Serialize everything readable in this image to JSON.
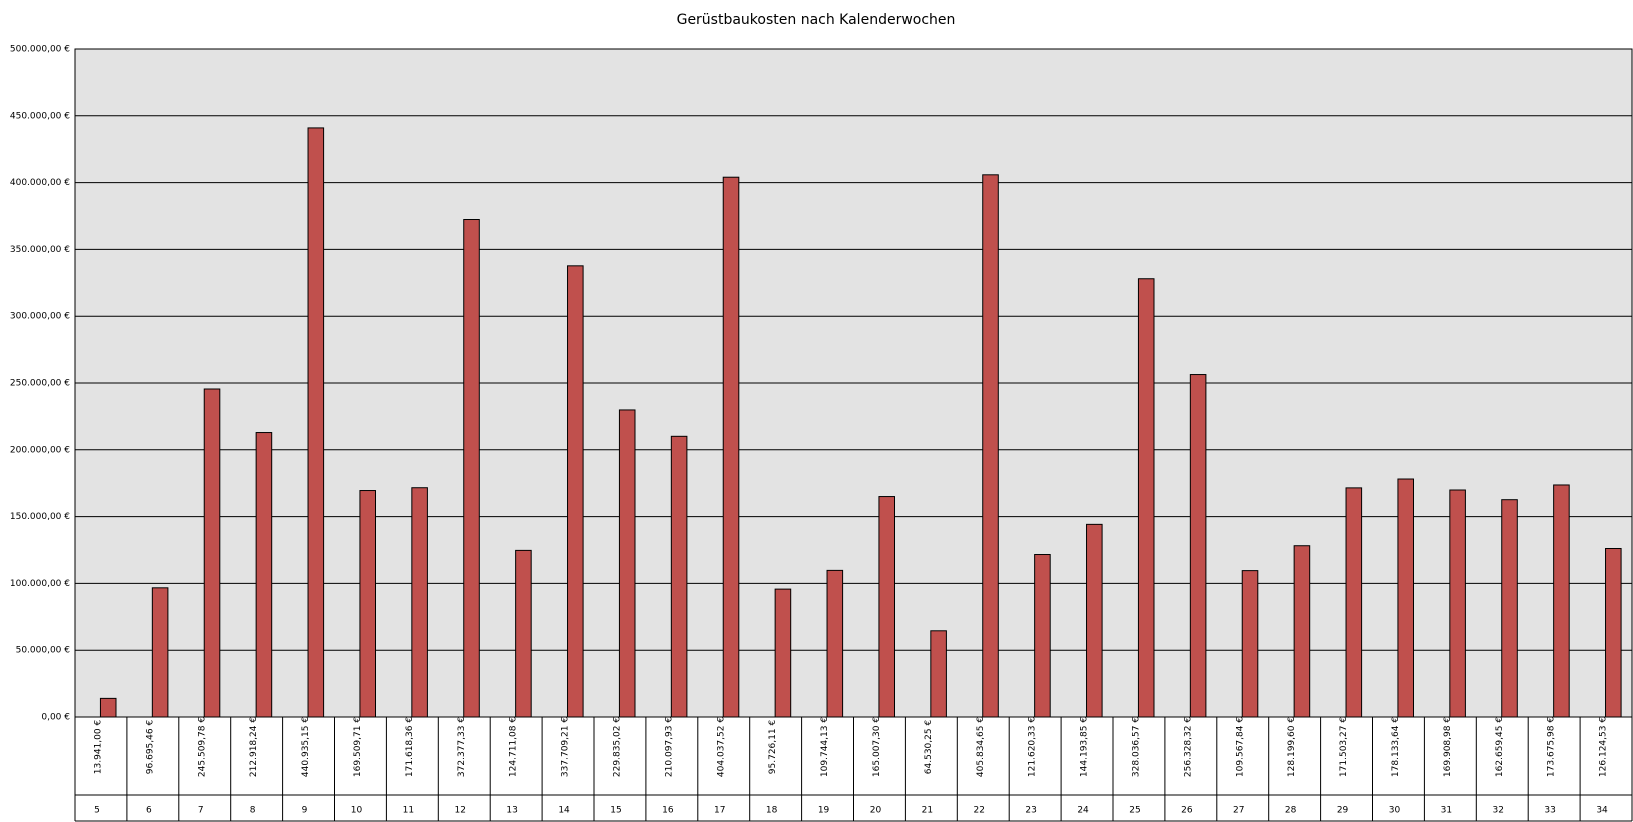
{
  "chart_data": {
    "type": "bar",
    "title": "Gerüstbaukosten nach Kalenderwochen",
    "categories": [
      "5",
      "6",
      "7",
      "8",
      "9",
      "10",
      "11",
      "12",
      "13",
      "14",
      "15",
      "16",
      "17",
      "18",
      "19",
      "20",
      "21",
      "22",
      "23",
      "24",
      "25",
      "26",
      "27",
      "28",
      "29",
      "30",
      "31",
      "32",
      "33",
      "34"
    ],
    "values": [
      13941.0,
      96695.46,
      245509.78,
      212918.24,
      440935.15,
      169509.71,
      171618.36,
      372377.33,
      124711.08,
      337709.21,
      229835.02,
      210097.93,
      404037.52,
      95726.11,
      109744.13,
      165007.3,
      64530.25,
      405834.65,
      121620.33,
      144193.85,
      328036.57,
      256328.32,
      109567.84,
      128199.6,
      171503.27,
      178133.64,
      169908.98,
      162659.45,
      173675.98,
      126124.53
    ],
    "value_labels": [
      "13.941,00 €",
      "96.695,46 €",
      "245.509,78 €",
      "212.918,24 €",
      "440.935,15 €",
      "169.509,71 €",
      "171.618,36 €",
      "372.377,33 €",
      "124.711,08 €",
      "337.709,21 €",
      "229.835,02 €",
      "210.097,93 €",
      "404.037,52 €",
      "95.726,11 €",
      "109.744,13 €",
      "165.007,30 €",
      "64.530,25 €",
      "405.834,65 €",
      "121.620,33 €",
      "144.193,85 €",
      "328.036,57 €",
      "256.328,32 €",
      "109.567,84 €",
      "128.199,60 €",
      "171.503,27 €",
      "178.133,64 €",
      "169.908,98 €",
      "162.659,45 €",
      "173.675,98 €",
      "126.124,53 €"
    ],
    "color": "#c0504d",
    "ylim": [
      0,
      500000
    ],
    "yticks": [
      {
        "value": 0,
        "label": "0,00 €"
      },
      {
        "value": 50000,
        "label": "50.000,00 €"
      },
      {
        "value": 100000,
        "label": "100.000,00 €"
      },
      {
        "value": 150000,
        "label": "150.000,00 €"
      },
      {
        "value": 200000,
        "label": "200.000,00 €"
      },
      {
        "value": 250000,
        "label": "250.000,00 €"
      },
      {
        "value": 300000,
        "label": "300.000,00 €"
      },
      {
        "value": 350000,
        "label": "350.000,00 €"
      },
      {
        "value": 400000,
        "label": "400.000,00 €"
      },
      {
        "value": 450000,
        "label": "450.000,00 €"
      },
      {
        "value": 500000,
        "label": "500.000,00 €"
      }
    ],
    "grid": true
  }
}
